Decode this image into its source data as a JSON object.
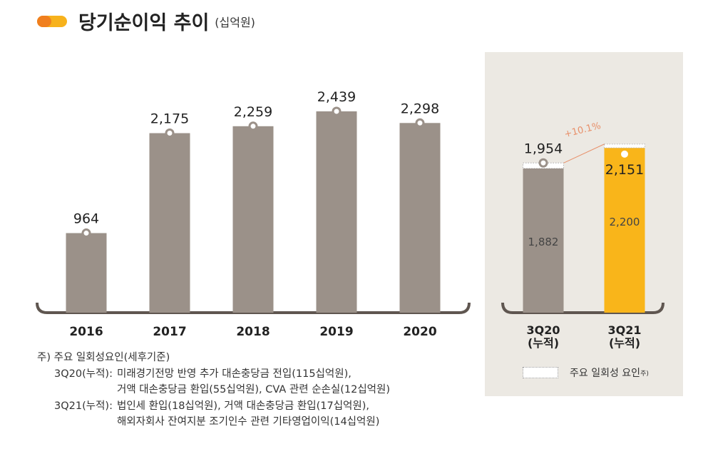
{
  "title": {
    "text": "당기순이익 추이",
    "unit": "(십억원)"
  },
  "colors": {
    "gray": "#9b9189",
    "yellow": "#f9b51a",
    "orange": "#f07f1e",
    "panel": "#ece9e3",
    "growth": "#e8906a"
  },
  "chart_data": [
    {
      "type": "bar",
      "categories": [
        "2016",
        "2017",
        "2018",
        "2019",
        "2020"
      ],
      "values": [
        964,
        2175,
        2259,
        2439,
        2298
      ],
      "data_labels": [
        "964",
        "2,175",
        "2,259",
        "2,439",
        "2,298"
      ],
      "unit": "(십억원)"
    },
    {
      "type": "bar",
      "stacked": true,
      "categories": [
        "3Q20\n(누적)",
        "3Q21\n(누적)"
      ],
      "cat_lines": [
        [
          "3Q20",
          "(누적)"
        ],
        [
          "3Q21",
          "(누적)"
        ]
      ],
      "totals": [
        1954,
        2151
      ],
      "total_labels": [
        "1,954",
        "2,151"
      ],
      "base": [
        1882,
        2200
      ],
      "base_labels": [
        "1,882",
        "2,200"
      ],
      "growth_label": "+10.1%",
      "legend": "주요 일회성 요인",
      "legend_sup": "주)"
    }
  ],
  "notes": {
    "head": "주) 주요 일회성요인(세후기준)",
    "rows": [
      {
        "label": "3Q20(누적):",
        "lines": [
          "미래경기전망 반영 추가 대손충당금 전입(115십억원),",
          "거액 대손충당금 환입(55십억원), CVA 관련 순손실(12십억원)"
        ]
      },
      {
        "label": "3Q21(누적):",
        "lines": [
          "법인세 환입(18십억원), 거액 대손충당금 환입(17십억원),",
          "해외자회사 잔여지분 조기인수 관련 기타영업이익(14십억원)"
        ]
      }
    ]
  }
}
